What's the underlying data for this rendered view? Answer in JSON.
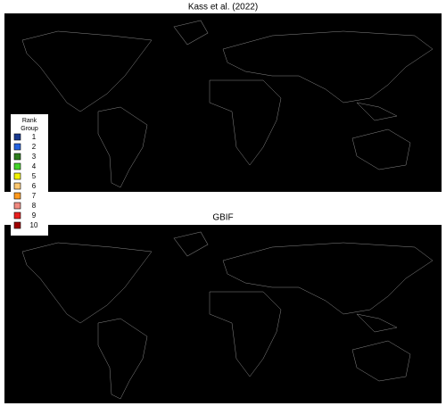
{
  "panels": [
    {
      "title": "Kass et al. (2022)"
    },
    {
      "title": "GBIF"
    }
  ],
  "legend": {
    "title_lines": [
      "Rank",
      "Group"
    ],
    "items": [
      {
        "label": "1",
        "color": "#1a3a8f"
      },
      {
        "label": "2",
        "color": "#2563e0"
      },
      {
        "label": "3",
        "color": "#2e7d1e"
      },
      {
        "label": "4",
        "color": "#44d42a"
      },
      {
        "label": "5",
        "color": "#f2f200"
      },
      {
        "label": "6",
        "color": "#ffc870"
      },
      {
        "label": "7",
        "color": "#ff9a1e"
      },
      {
        "label": "8",
        "color": "#f08a80"
      },
      {
        "label": "9",
        "color": "#e82020"
      },
      {
        "label": "10",
        "color": "#a00000"
      }
    ]
  }
}
